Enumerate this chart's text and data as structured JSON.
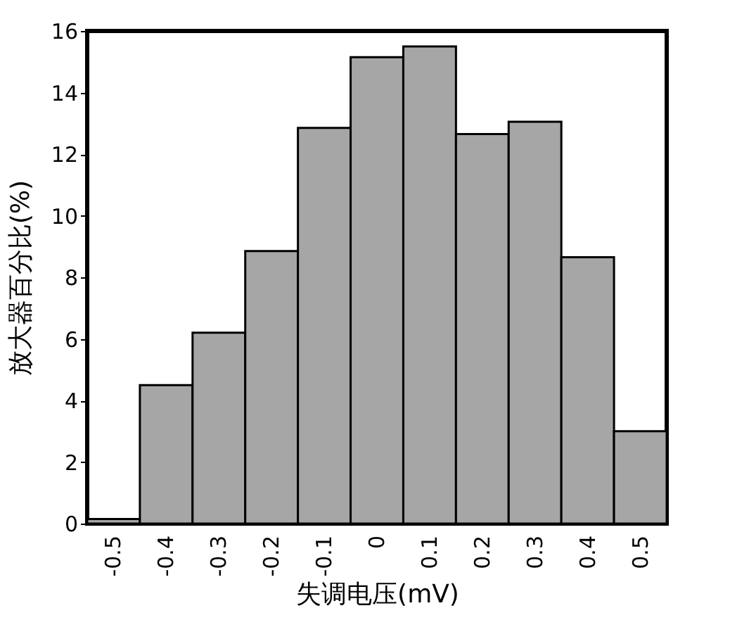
{
  "chart_data": {
    "type": "bar",
    "xlabel": "失调电压(mV)",
    "ylabel": "放大器百分比(%)",
    "categories": [
      "-0.5",
      "-0.4",
      "-0.3",
      "-0.2",
      "-0.1",
      "0",
      "0.1",
      "0.2",
      "0.3",
      "0.4",
      "0.5"
    ],
    "values": [
      0.15,
      4.5,
      6.2,
      8.85,
      12.85,
      15.15,
      15.5,
      12.65,
      13.05,
      8.65,
      3.0
    ],
    "color": "#a6a6a6",
    "ylim": [
      0,
      16
    ],
    "yticks": [
      0,
      2,
      4,
      6,
      8,
      10,
      12,
      14,
      16
    ],
    "grid": false
  }
}
